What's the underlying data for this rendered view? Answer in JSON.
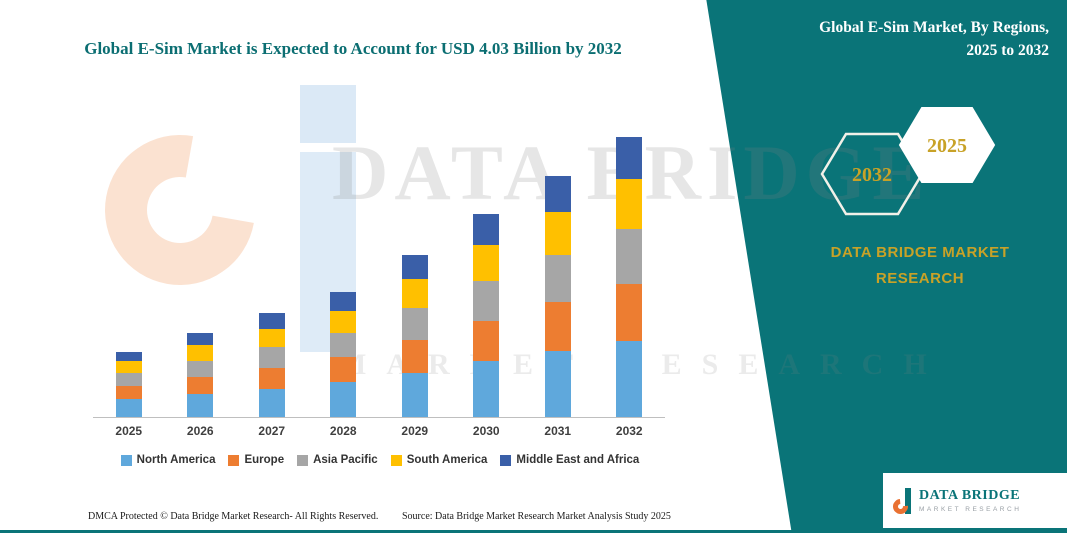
{
  "title": {
    "main": "Global E-Sim Market is Expected to Account for USD 4.03 Billion by 2032"
  },
  "side_panel": {
    "title": "Global E-Sim Market, By Regions, 2025 to 2032",
    "hexagons": [
      {
        "label": "2032"
      },
      {
        "label": "2025"
      }
    ],
    "brand_line1": "DATA BRIDGE MARKET",
    "brand_line2": "RESEARCH",
    "teal": "#0A7478",
    "gold": "#C8A227"
  },
  "watermark": {
    "line1": "DATA BRIDGE",
    "line2": "MARKET RESEARCH"
  },
  "chart_data": {
    "type": "bar",
    "stacked": true,
    "title": "Global E-Sim Market is Expected to Account for USD 4.03 Billion by 2032",
    "unit": "USD Billion",
    "categories": [
      "2025",
      "2026",
      "2027",
      "2028",
      "2029",
      "2030",
      "2031",
      "2032"
    ],
    "series": [
      {
        "name": "North America",
        "color": "#5FA8DC",
        "values": [
          0.26,
          0.33,
          0.41,
          0.5,
          0.64,
          0.8,
          0.95,
          1.1
        ]
      },
      {
        "name": "Europe",
        "color": "#ED7D31",
        "values": [
          0.19,
          0.24,
          0.3,
          0.36,
          0.47,
          0.58,
          0.7,
          0.81
        ]
      },
      {
        "name": "Asia Pacific",
        "color": "#A6A6A6",
        "values": [
          0.18,
          0.24,
          0.29,
          0.35,
          0.46,
          0.58,
          0.68,
          0.8
        ]
      },
      {
        "name": "South America",
        "color": "#FFC000",
        "values": [
          0.17,
          0.22,
          0.27,
          0.32,
          0.42,
          0.52,
          0.62,
          0.72
        ]
      },
      {
        "name": "Middle East and Africa",
        "color": "#3A5FA8",
        "values": [
          0.14,
          0.18,
          0.23,
          0.27,
          0.34,
          0.44,
          0.52,
          0.6
        ]
      }
    ],
    "totals_note": "2032 total = 4.03",
    "ylim": [
      0,
      4.2
    ],
    "grid": false,
    "legend_position": "bottom"
  },
  "footer": {
    "dmca": "DMCA Protected © Data Bridge Market Research-  All Rights Reserved.",
    "source": "Source: Data Bridge Market Research  Market Analysis Study 2025"
  },
  "logo": {
    "name": "DATA BRIDGE",
    "tagline": "MARKET RESEARCH"
  }
}
